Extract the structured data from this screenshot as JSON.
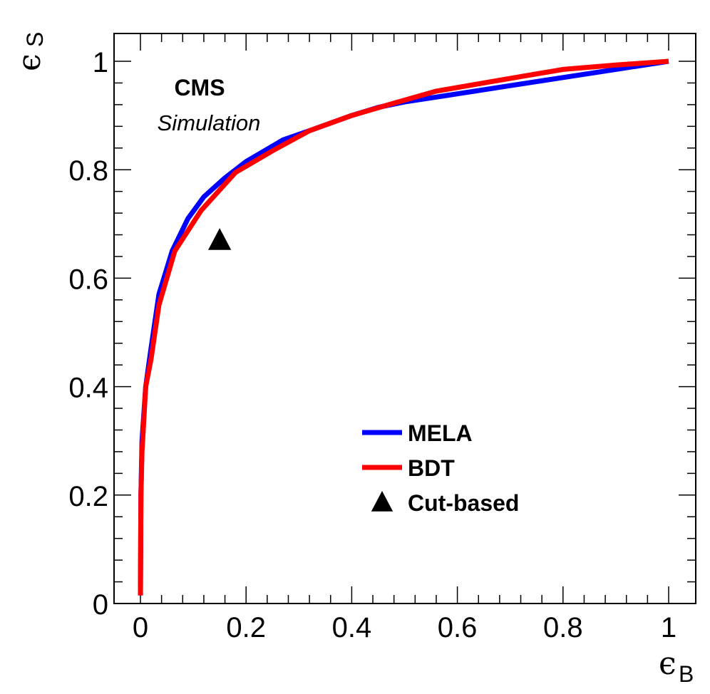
{
  "chart_data": {
    "type": "line",
    "title": "",
    "xlabel": "ϵ",
    "xlabel_subscript": "B",
    "ylabel": "ϵ",
    "ylabel_subscript": "S",
    "xlim": [
      -0.05,
      1.05
    ],
    "ylim": [
      0,
      1.05
    ],
    "x_ticks": [
      0,
      0.2,
      0.4,
      0.6,
      0.8,
      1
    ],
    "x_tick_labels": [
      "0",
      "0.2",
      "0.4",
      "0.6",
      "0.8",
      "1"
    ],
    "y_ticks": [
      0,
      0.2,
      0.4,
      0.6,
      0.8,
      1
    ],
    "y_tick_labels": [
      "0",
      "0.2",
      "0.4",
      "0.6",
      "0.8",
      "1"
    ],
    "grid": false,
    "legend_position": "bottom-right",
    "annotations": {
      "experiment": "CMS",
      "status": "Simulation"
    },
    "series": [
      {
        "name": "MELA",
        "kind": "line",
        "color": "#0000ff",
        "points": [
          [
            0.0,
            0.015
          ],
          [
            0.001,
            0.2
          ],
          [
            0.003,
            0.3
          ],
          [
            0.01,
            0.4
          ],
          [
            0.02,
            0.47
          ],
          [
            0.035,
            0.57
          ],
          [
            0.06,
            0.65
          ],
          [
            0.09,
            0.71
          ],
          [
            0.12,
            0.75
          ],
          [
            0.16,
            0.785
          ],
          [
            0.2,
            0.815
          ],
          [
            0.27,
            0.855
          ],
          [
            0.32,
            0.872
          ],
          [
            0.4,
            0.9
          ],
          [
            0.45,
            0.915
          ],
          [
            0.5,
            0.925
          ],
          [
            0.6,
            0.94
          ],
          [
            0.7,
            0.955
          ],
          [
            0.8,
            0.97
          ],
          [
            0.9,
            0.985
          ],
          [
            1.0,
            1.0
          ]
        ]
      },
      {
        "name": "BDT",
        "kind": "line",
        "color": "#ff0000",
        "points": [
          [
            0.0,
            0.015
          ],
          [
            0.001,
            0.2
          ],
          [
            0.003,
            0.28
          ],
          [
            0.01,
            0.4
          ],
          [
            0.02,
            0.45
          ],
          [
            0.035,
            0.55
          ],
          [
            0.065,
            0.65
          ],
          [
            0.115,
            0.725
          ],
          [
            0.18,
            0.795
          ],
          [
            0.25,
            0.835
          ],
          [
            0.32,
            0.872
          ],
          [
            0.4,
            0.9
          ],
          [
            0.47,
            0.92
          ],
          [
            0.56,
            0.945
          ],
          [
            0.68,
            0.965
          ],
          [
            0.8,
            0.985
          ],
          [
            0.9,
            0.993
          ],
          [
            1.0,
            1.0
          ]
        ]
      },
      {
        "name": "Cut-based",
        "kind": "marker",
        "marker": "triangle-up",
        "color": "#000000",
        "points": [
          [
            0.15,
            0.67
          ]
        ]
      }
    ]
  }
}
